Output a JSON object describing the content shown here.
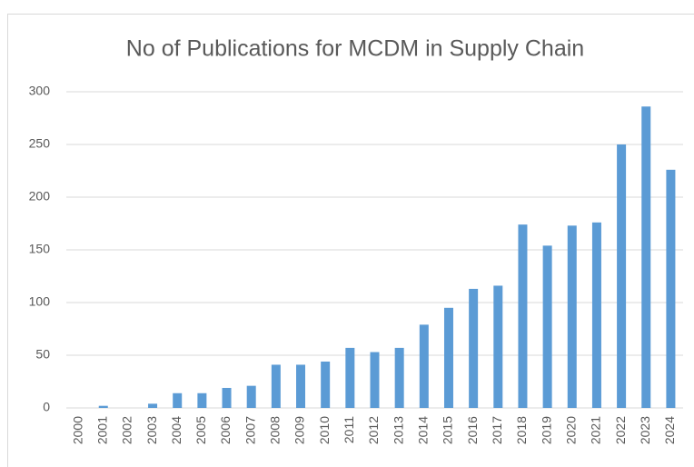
{
  "chart_data": {
    "type": "bar",
    "title": "No of Publications for MCDM in Supply Chain",
    "categories": [
      "2000",
      "2001",
      "2002",
      "2003",
      "2004",
      "2005",
      "2006",
      "2007",
      "2008",
      "2009",
      "2010",
      "2011",
      "2012",
      "2013",
      "2014",
      "2015",
      "2016",
      "2017",
      "2018",
      "2019",
      "2020",
      "2021",
      "2022",
      "2023",
      "2024"
    ],
    "values": [
      0,
      2,
      0,
      4,
      14,
      14,
      19,
      21,
      41,
      41,
      44,
      57,
      53,
      57,
      79,
      95,
      113,
      116,
      174,
      154,
      173,
      176,
      250,
      286,
      226
    ],
    "color": "#5b9bd5",
    "ylim": [
      0,
      300
    ],
    "yticks": [
      0,
      50,
      100,
      150,
      200,
      250,
      300
    ],
    "grid": true
  }
}
